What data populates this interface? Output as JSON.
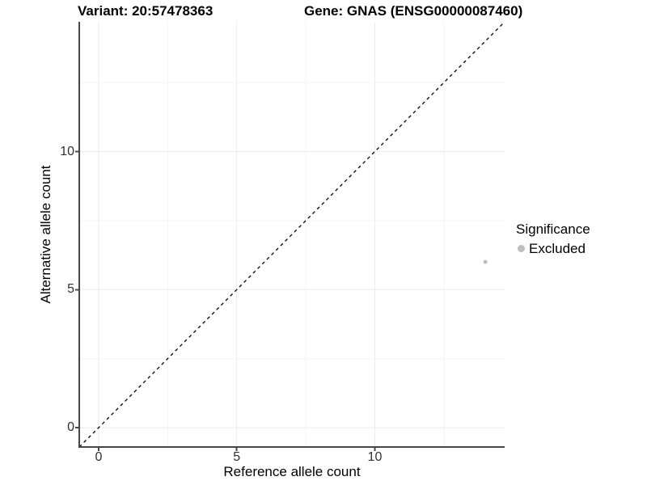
{
  "header": {
    "variant": "Variant: 20:57478363",
    "gene": "Gene: GNAS (ENSG00000087460)"
  },
  "legend": {
    "title": "Significance",
    "items": [
      {
        "label": "Excluded",
        "color": "#bdbdbd"
      }
    ]
  },
  "chart_data": {
    "type": "scatter",
    "title": "Variant: 20:57478363   Gene: GNAS (ENSG00000087460)",
    "xlabel": "Reference allele count",
    "ylabel": "Alternative allele count",
    "xlim": [
      -0.7,
      14.7
    ],
    "ylim": [
      -0.7,
      14.7
    ],
    "x_ticks": [
      0,
      5,
      10
    ],
    "y_ticks": [
      0,
      5,
      10
    ],
    "x_minor_gridlines": [
      2.5,
      7.5,
      12.5
    ],
    "y_minor_gridlines": [
      2.5,
      7.5,
      12.5
    ],
    "grid": true,
    "legend_position": "right",
    "series": [
      {
        "name": "Excluded",
        "color": "#bdbdbd",
        "points": [
          {
            "x": 14,
            "y": 6
          }
        ]
      }
    ],
    "reference_line": {
      "type": "identity",
      "slope": 1,
      "intercept": 0,
      "style": "dashed",
      "color": "#000000"
    },
    "colors": {
      "background": "#ffffff",
      "major_gridline": "#ebebeb",
      "minor_gridline": "#f5f5f5",
      "axis_line": "#474747",
      "tick_text": "#303030"
    }
  }
}
